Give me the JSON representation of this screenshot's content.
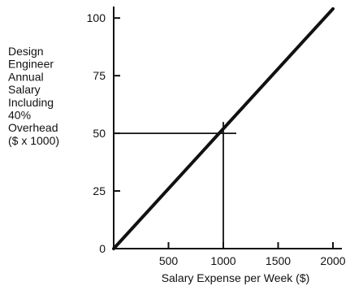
{
  "chart_data": {
    "type": "line",
    "title": "",
    "xlabel": "Salary Expense per Week ($)",
    "ylabel_lines": [
      "Design",
      "Engineer",
      "Annual",
      "Salary",
      "Including",
      "40%",
      "Overhead",
      "($ x 1000)"
    ],
    "xlim": [
      0,
      2000
    ],
    "ylim": [
      0,
      105
    ],
    "x_ticks": [
      500,
      1000,
      1500,
      2000
    ],
    "y_ticks": [
      0,
      25,
      50,
      75,
      100
    ],
    "grid": false,
    "series": [
      {
        "x": [
          0,
          2000
        ],
        "y": [
          0,
          104
        ],
        "color": "#111111"
      }
    ],
    "reference_point": {
      "x": 1000,
      "y": 50
    }
  }
}
